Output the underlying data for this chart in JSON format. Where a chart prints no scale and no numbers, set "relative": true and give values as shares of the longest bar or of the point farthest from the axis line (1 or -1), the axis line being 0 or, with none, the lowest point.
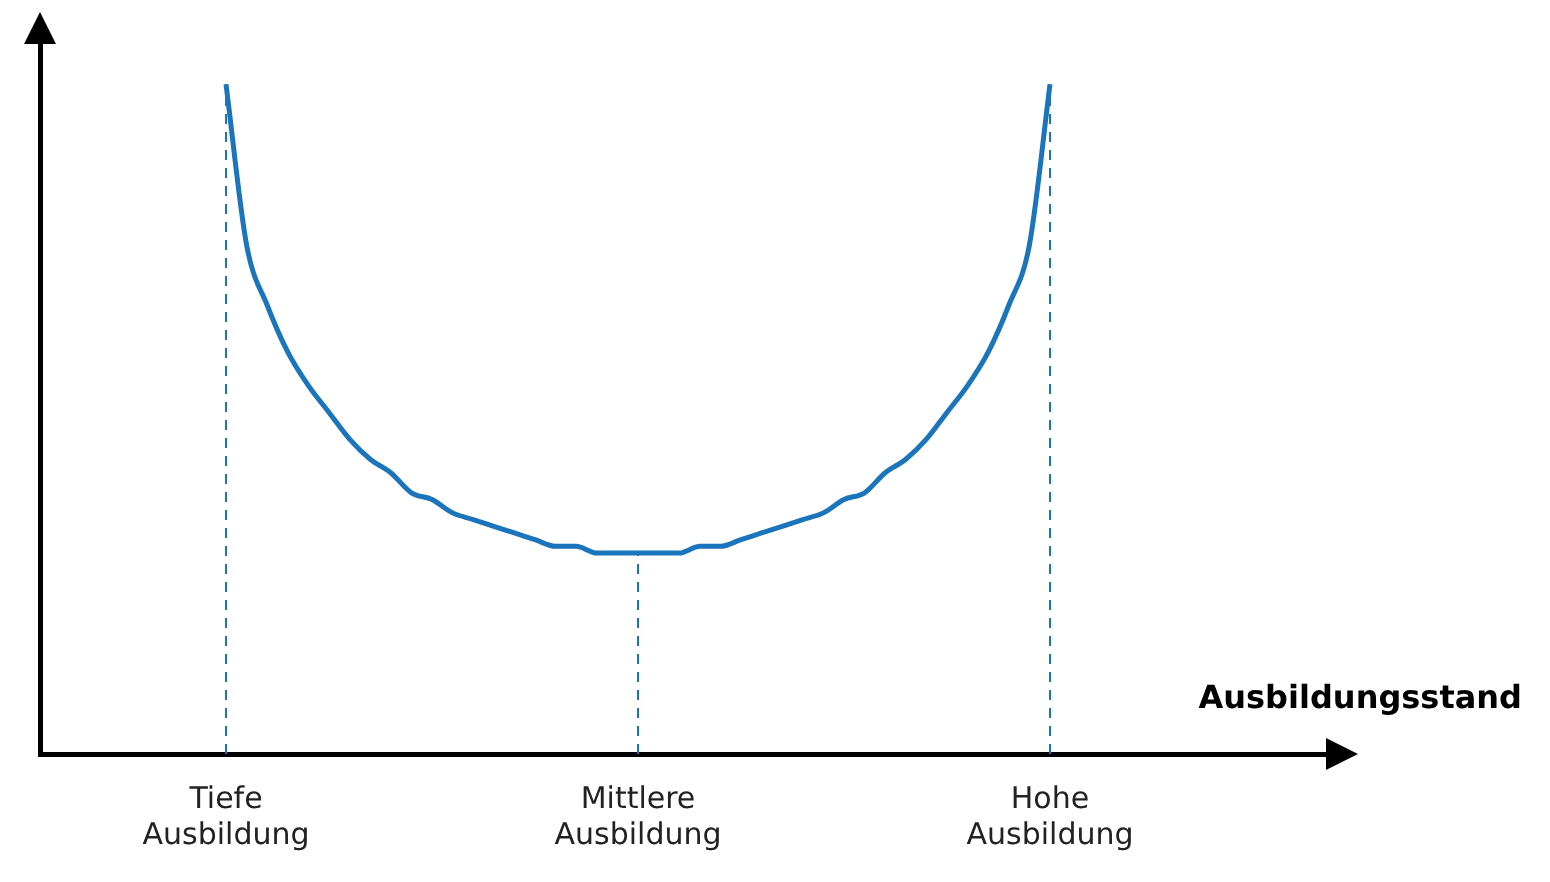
{
  "chart_data": {
    "type": "line",
    "relative": true,
    "xlabel": "Ausbildungsstand",
    "categories": [
      "Tiefe Ausbildung",
      null,
      null,
      null,
      null,
      null,
      null,
      null,
      null,
      null,
      null,
      null,
      null,
      null,
      null,
      null,
      null,
      null,
      null,
      null,
      "Mittlere Ausbildung",
      null,
      null,
      null,
      null,
      null,
      null,
      null,
      null,
      null,
      null,
      null,
      null,
      null,
      null,
      null,
      null,
      null,
      null,
      null,
      "Hohe Ausbildung"
    ],
    "series": [
      {
        "color": "#1a75bc",
        "values": [
          1.0,
          0.76,
          0.67,
          0.6,
          0.55,
          0.51,
          0.47,
          0.44,
          0.42,
          0.39,
          0.38,
          0.36,
          0.35,
          0.34,
          0.33,
          0.32,
          0.31,
          0.31,
          0.3,
          0.3,
          0.3,
          0.3,
          0.3,
          0.31,
          0.31,
          0.32,
          0.33,
          0.34,
          0.35,
          0.36,
          0.38,
          0.39,
          0.42,
          0.44,
          0.47,
          0.51,
          0.55,
          0.6,
          0.67,
          0.76,
          1.0
        ]
      }
    ],
    "ref_lines": [
      {
        "axis": "x",
        "value": "Tiefe Ausbildung",
        "color": "#1a75bc",
        "line_style": "dashed"
      },
      {
        "axis": "x",
        "value": "Mittlere Ausbildung",
        "color": "#1a75bc",
        "line_style": "dashed"
      },
      {
        "axis": "x",
        "value": "Hohe Ausbildung",
        "color": "#1a75bc",
        "line_style": "dashed"
      }
    ],
    "grid": false,
    "legend": false,
    "marker": "none",
    "line_style": "solid",
    "tick_labels": "x"
  }
}
